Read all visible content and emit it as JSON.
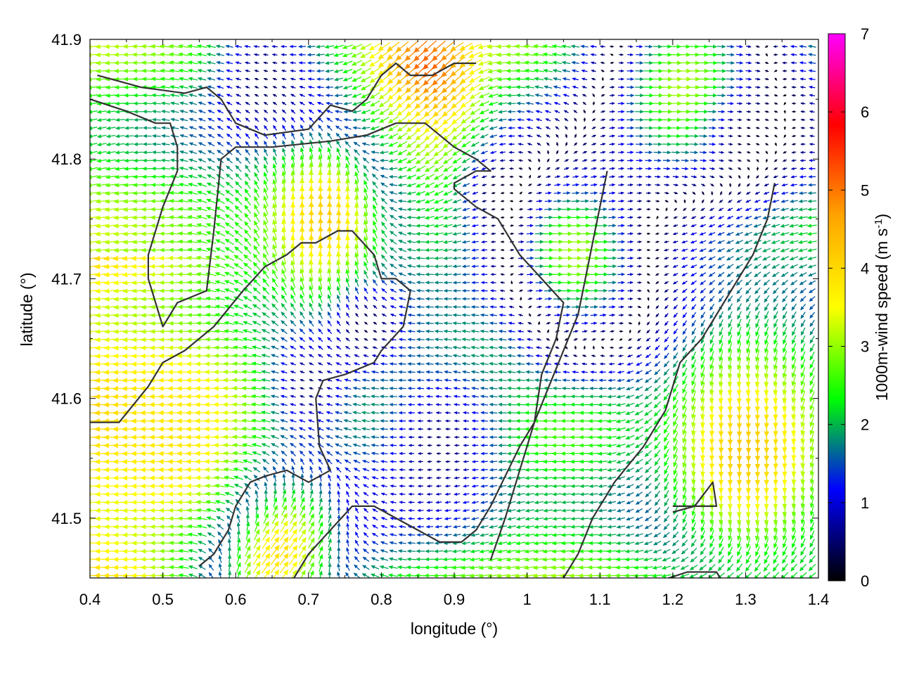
{
  "chart_data": {
    "type": "vector-field",
    "xlabel": "longitude (°)",
    "ylabel": "latitude (°)",
    "xlim": [
      0.4,
      1.4
    ],
    "ylim": [
      41.45,
      41.9
    ],
    "xticks": [
      0.4,
      0.5,
      0.6,
      0.7,
      0.8,
      0.9,
      1.0,
      1.1,
      1.2,
      1.3,
      1.4
    ],
    "xtick_labels": [
      "0.4",
      "0.5",
      "0.6",
      "0.7",
      "0.8",
      "0.9",
      "1",
      "1.1",
      "1.2",
      "1.3",
      "1.4"
    ],
    "yticks": [
      41.5,
      41.6,
      41.7,
      41.8,
      41.9
    ],
    "ytick_labels": [
      "41.5",
      "41.6",
      "41.7",
      "41.8",
      "41.9"
    ],
    "colorbar": {
      "label_main": "1000m-wind speed (m s",
      "label_sup": "-1",
      "label_end": ")",
      "range": [
        0,
        7
      ],
      "ticks": [
        "0",
        "1",
        "2",
        "3",
        "4",
        "5",
        "6",
        "7"
      ],
      "colormap": [
        "#000000",
        "#0000ff",
        "#00ff00",
        "#ffff00",
        "#ffa500",
        "#ff0000",
        "#ff00ff"
      ]
    },
    "contour_color": "#333333",
    "contours": [
      [
        [
          0.41,
          41.87
        ],
        [
          0.47,
          41.86
        ],
        [
          0.53,
          41.855
        ],
        [
          0.56,
          41.86
        ],
        [
          0.58,
          41.85
        ],
        [
          0.6,
          41.83
        ],
        [
          0.64,
          41.82
        ],
        [
          0.7,
          41.825
        ],
        [
          0.73,
          41.845
        ],
        [
          0.76,
          41.84
        ],
        [
          0.78,
          41.85
        ],
        [
          0.8,
          41.87
        ],
        [
          0.82,
          41.88
        ],
        [
          0.84,
          41.87
        ],
        [
          0.87,
          41.87
        ],
        [
          0.9,
          41.88
        ],
        [
          0.93,
          41.88
        ]
      ],
      [
        [
          0.4,
          41.85
        ],
        [
          0.45,
          41.84
        ],
        [
          0.49,
          41.83
        ],
        [
          0.51,
          41.83
        ],
        [
          0.52,
          41.81
        ],
        [
          0.52,
          41.79
        ],
        [
          0.5,
          41.76
        ],
        [
          0.48,
          41.72
        ],
        [
          0.48,
          41.7
        ],
        [
          0.5,
          41.66
        ],
        [
          0.52,
          41.68
        ],
        [
          0.56,
          41.69
        ],
        [
          0.57,
          41.74
        ],
        [
          0.58,
          41.8
        ],
        [
          0.6,
          41.81
        ],
        [
          0.65,
          41.81
        ],
        [
          0.73,
          41.815
        ],
        [
          0.78,
          41.82
        ],
        [
          0.82,
          41.83
        ],
        [
          0.86,
          41.83
        ],
        [
          0.9,
          41.81
        ],
        [
          0.93,
          41.8
        ],
        [
          0.95,
          41.79
        ],
        [
          0.93,
          41.79
        ],
        [
          0.9,
          41.78
        ],
        [
          0.9,
          41.775
        ],
        [
          0.93,
          41.76
        ],
        [
          0.96,
          41.75
        ],
        [
          0.99,
          41.72
        ],
        [
          1.02,
          41.7
        ],
        [
          1.05,
          41.68
        ],
        [
          1.04,
          41.65
        ],
        [
          1.02,
          41.62
        ],
        [
          1.01,
          41.58
        ],
        [
          0.99,
          41.54
        ],
        [
          0.97,
          41.5
        ],
        [
          0.95,
          41.465
        ]
      ],
      [
        [
          0.4,
          41.58
        ],
        [
          0.44,
          41.58
        ],
        [
          0.48,
          41.61
        ],
        [
          0.5,
          41.63
        ],
        [
          0.53,
          41.64
        ],
        [
          0.57,
          41.66
        ],
        [
          0.61,
          41.69
        ],
        [
          0.64,
          41.71
        ],
        [
          0.67,
          41.72
        ],
        [
          0.69,
          41.73
        ],
        [
          0.71,
          41.73
        ],
        [
          0.74,
          41.74
        ],
        [
          0.76,
          41.74
        ],
        [
          0.79,
          41.72
        ],
        [
          0.8,
          41.7
        ],
        [
          0.82,
          41.7
        ],
        [
          0.84,
          41.69
        ],
        [
          0.83,
          41.66
        ],
        [
          0.8,
          41.64
        ],
        [
          0.79,
          41.63
        ],
        [
          0.75,
          41.62
        ],
        [
          0.72,
          41.615
        ],
        [
          0.71,
          41.6
        ],
        [
          0.715,
          41.56
        ],
        [
          0.73,
          41.54
        ],
        [
          0.7,
          41.53
        ],
        [
          0.67,
          41.54
        ],
        [
          0.64,
          41.535
        ],
        [
          0.62,
          41.53
        ],
        [
          0.6,
          41.51
        ],
        [
          0.59,
          41.49
        ],
        [
          0.57,
          41.47
        ],
        [
          0.55,
          41.46
        ]
      ],
      [
        [
          0.68,
          41.45
        ],
        [
          0.7,
          41.47
        ],
        [
          0.73,
          41.49
        ],
        [
          0.76,
          41.51
        ],
        [
          0.79,
          41.51
        ],
        [
          0.82,
          41.5
        ],
        [
          0.85,
          41.49
        ],
        [
          0.88,
          41.48
        ],
        [
          0.91,
          41.48
        ],
        [
          0.93,
          41.49
        ],
        [
          0.95,
          41.51
        ],
        [
          0.97,
          41.535
        ],
        [
          0.99,
          41.56
        ],
        [
          1.01,
          41.58
        ],
        [
          1.03,
          41.61
        ],
        [
          1.05,
          41.64
        ],
        [
          1.07,
          41.67
        ],
        [
          1.08,
          41.7
        ],
        [
          1.09,
          41.73
        ],
        [
          1.1,
          41.76
        ],
        [
          1.11,
          41.79
        ]
      ],
      [
        [
          1.05,
          41.45
        ],
        [
          1.07,
          41.47
        ],
        [
          1.09,
          41.5
        ],
        [
          1.12,
          41.53
        ],
        [
          1.16,
          41.56
        ],
        [
          1.19,
          41.59
        ],
        [
          1.21,
          41.63
        ],
        [
          1.24,
          41.65
        ],
        [
          1.26,
          41.67
        ],
        [
          1.28,
          41.69
        ],
        [
          1.31,
          41.72
        ],
        [
          1.33,
          41.75
        ],
        [
          1.34,
          41.78
        ]
      ],
      [
        [
          1.2,
          41.51
        ],
        [
          1.24,
          41.51
        ],
        [
          1.26,
          41.51
        ],
        [
          1.255,
          41.53
        ],
        [
          1.23,
          41.51
        ],
        [
          1.2,
          41.505
        ]
      ],
      [
        [
          1.17,
          41.445
        ],
        [
          1.22,
          41.455
        ],
        [
          1.26,
          41.455
        ],
        [
          1.27,
          41.445
        ]
      ]
    ],
    "jets": [
      {
        "lon": 0.86,
        "lat": 41.87,
        "speed": 6.0,
        "dir": 225,
        "radius": 0.05
      },
      {
        "lon": 0.82,
        "lat": 41.81,
        "speed": 4.4,
        "dir": 225,
        "radius": 0.07
      },
      {
        "lon": 0.72,
        "lat": 41.75,
        "speed": 4.2,
        "dir": 90,
        "radius": 0.08
      },
      {
        "lon": 0.64,
        "lat": 41.48,
        "speed": 5.8,
        "dir": 45,
        "radius": 0.07
      },
      {
        "lon": 0.52,
        "lat": 41.56,
        "speed": 3.8,
        "dir": 180,
        "radius": 0.1
      },
      {
        "lon": 1.3,
        "lat": 41.56,
        "speed": 4.2,
        "dir": 270,
        "radius": 0.1
      },
      {
        "lon": 1.22,
        "lat": 41.86,
        "speed": 3.2,
        "dir": 0,
        "radius": 0.09
      },
      {
        "lon": 1.06,
        "lat": 41.72,
        "speed": 3.2,
        "dir": 0,
        "radius": 0.08
      },
      {
        "lon": 0.92,
        "lat": 41.62,
        "speed": 2.2,
        "dir": 170,
        "radius": 0.07
      }
    ],
    "calm_zones": [
      {
        "lon": 0.88,
        "lat": 41.56,
        "radius": 0.06
      },
      {
        "lon": 0.7,
        "lat": 41.61,
        "radius": 0.04
      },
      {
        "lon": 0.64,
        "lat": 41.87,
        "radius": 0.05
      },
      {
        "lon": 1.3,
        "lat": 41.82,
        "radius": 0.04
      },
      {
        "lon": 0.78,
        "lat": 41.66,
        "radius": 0.03
      },
      {
        "lon": 0.96,
        "lat": 41.77,
        "radius": 0.03
      }
    ]
  }
}
